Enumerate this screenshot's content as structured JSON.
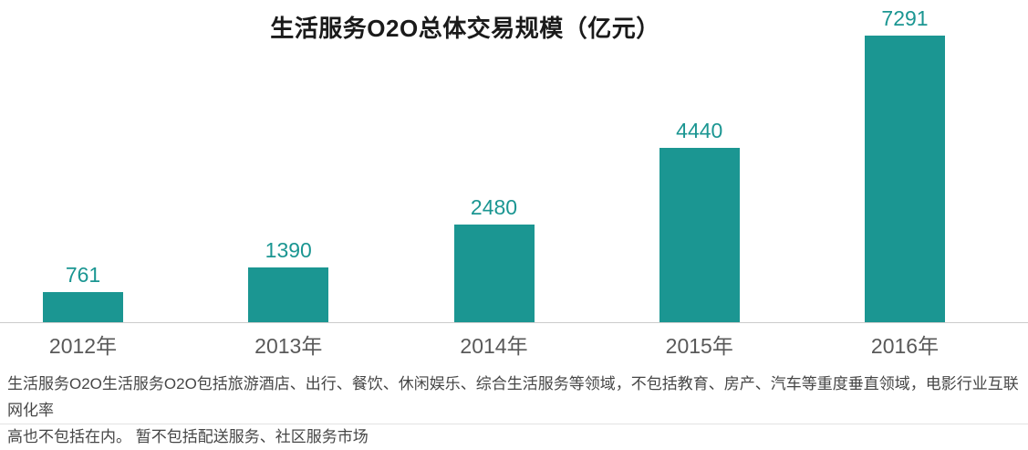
{
  "chart_data": {
    "type": "bar",
    "title": "生活服务O2O总体交易规模（亿元）",
    "categories": [
      "2012年",
      "2013年",
      "2014年",
      "2015年",
      "2016年"
    ],
    "values": [
      761,
      1390,
      2480,
      4440,
      7291
    ],
    "value_labels_shown": true,
    "ylim": [
      0,
      7400
    ],
    "grid": false,
    "legend": "none",
    "bar_color": "#1B9692",
    "value_label_color": "#1B9692",
    "x_label_color": "#595959",
    "axis_line_color": "#cccccc",
    "title_color": "#1a1a1a"
  },
  "footnote": {
    "line1": "生活服务O2O生活服务O2O包括旅游酒店、出行、餐饮、休闲娱乐、综合生活服务等领域，不包括教育、房产、汽车等重度垂直领域，电影行业互联网化率",
    "line2": "高也不包括在内。 暂不包括配送服务、社区服务市场"
  }
}
